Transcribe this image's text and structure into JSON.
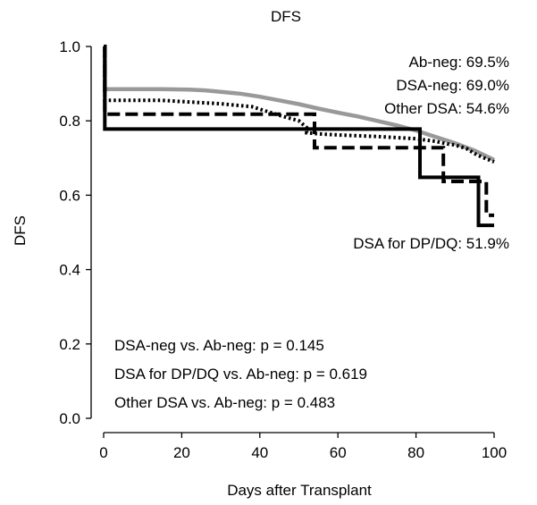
{
  "chart_data": {
    "type": "line",
    "title": "DFS",
    "xlabel": "Days after Transplant",
    "ylabel": "DFS",
    "xlim": [
      0,
      100
    ],
    "ylim": [
      0,
      1
    ],
    "xticks": [
      "0",
      "20",
      "40",
      "60",
      "80",
      "100"
    ],
    "yticks": [
      "0.0",
      "0.2",
      "0.4",
      "0.6",
      "0.8",
      "1.0"
    ],
    "series": [
      {
        "key": "ab_neg",
        "color": "#999999",
        "dash": "solid",
        "x": [
          0,
          0.3,
          0.3,
          5,
          15,
          22,
          26,
          30,
          35,
          40,
          45,
          50,
          55,
          60,
          65,
          70,
          75,
          80,
          85,
          90,
          95,
          100
        ],
        "y": [
          1.0,
          1.0,
          0.885,
          0.885,
          0.885,
          0.884,
          0.882,
          0.878,
          0.873,
          0.865,
          0.855,
          0.845,
          0.833,
          0.822,
          0.812,
          0.8,
          0.788,
          0.774,
          0.757,
          0.74,
          0.72,
          0.695
        ]
      },
      {
        "key": "dsa_neg",
        "color": "#000000",
        "dash": "dotted",
        "x": [
          0,
          0.3,
          0.3,
          15,
          20,
          30,
          38,
          45,
          50,
          52,
          52,
          55,
          60,
          70,
          80,
          85,
          88,
          90,
          93,
          95,
          97,
          100
        ],
        "y": [
          1.0,
          1.0,
          0.855,
          0.855,
          0.852,
          0.846,
          0.838,
          0.815,
          0.8,
          0.782,
          0.768,
          0.765,
          0.762,
          0.758,
          0.752,
          0.745,
          0.738,
          0.735,
          0.725,
          0.712,
          0.702,
          0.69
        ]
      },
      {
        "key": "dsa_dpdq",
        "color": "#000000",
        "dash": "solid",
        "x": [
          0,
          0.3,
          0.3,
          81,
          81,
          96,
          96,
          100
        ],
        "y": [
          1.0,
          1.0,
          0.778,
          0.778,
          0.648,
          0.648,
          0.519,
          0.519
        ]
      },
      {
        "key": "other_dsa",
        "color": "#000000",
        "dash": "dashed",
        "x": [
          0,
          0.3,
          0.3,
          54,
          54,
          87,
          87,
          98,
          98,
          100
        ],
        "y": [
          1.0,
          1.0,
          0.818,
          0.818,
          0.728,
          0.728,
          0.637,
          0.637,
          0.546,
          0.546
        ]
      }
    ],
    "annotations": {
      "ab_neg": "Ab-neg: 69.5%",
      "dsa_neg": "DSA-neg: 69.0%",
      "other_dsa": "Other DSA: 54.6%",
      "dsa_dpdq": "DSA for DP/DQ: 51.9%",
      "p_dsa_neg": "DSA-neg vs. Ab-neg: p = 0.145",
      "p_dsa_dpdq": "DSA for DP/DQ vs. Ab-neg: p = 0.619",
      "p_other": "Other DSA vs. Ab-neg: p = 0.483"
    },
    "grid": false,
    "legend": "none"
  }
}
